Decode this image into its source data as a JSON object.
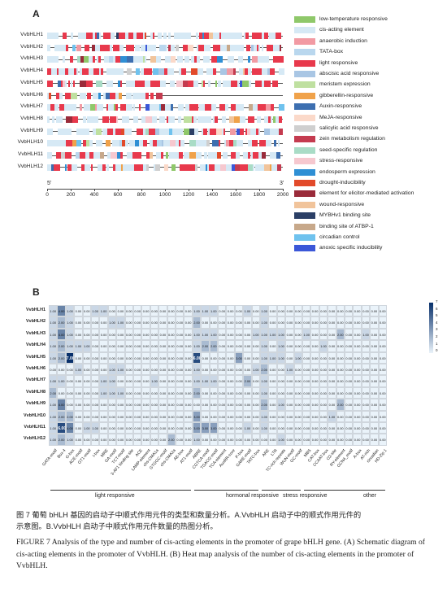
{
  "panel_a": {
    "letter": "A",
    "genes": [
      "VvbHLH1",
      "VvbHLH2",
      "VvbHLH3",
      "VvbHLH4",
      "VvbHLH5",
      "VvbHLH6",
      "VvbHLH7",
      "VvbHLH8",
      "VvbHLH9",
      "VvbHLH10",
      "VvbHLH11",
      "VvbHLH12"
    ],
    "axis": {
      "five_prime": "5'",
      "three_prime": "3'",
      "ticks": [
        "0",
        "200",
        "400",
        "600",
        "800",
        "1000",
        "1200",
        "1400",
        "1600",
        "1800",
        "2000"
      ]
    },
    "legend": [
      {
        "label": "low-temperature responsive",
        "color": "#8fc86a"
      },
      {
        "label": "cis-acting element",
        "color": "#d6e9f5"
      },
      {
        "label": "anaerobic induction",
        "color": "#f29aa3"
      },
      {
        "label": "TATA-box",
        "color": "#b9d7ee"
      },
      {
        "label": "light responsive",
        "color": "#e8394c"
      },
      {
        "label": "abscisic acid responsive",
        "color": "#a9c6e4"
      },
      {
        "label": "meristem expression",
        "color": "#bfe0a0"
      },
      {
        "label": "gibberellin-responsive",
        "color": "#f0a24a"
      },
      {
        "label": "Auxin-responsive",
        "color": "#3d6fb0"
      },
      {
        "label": "MeJA-responsive",
        "color": "#fbd9c9"
      },
      {
        "label": "salicylic acid responsive",
        "color": "#cfcfcf"
      },
      {
        "label": "zein metabolism regulation",
        "color": "#c43b4f"
      },
      {
        "label": "seed-specific regulation",
        "color": "#a9dcc6"
      },
      {
        "label": "stress-responsive",
        "color": "#f6c8cf"
      },
      {
        "label": "endosperm expression",
        "color": "#2f8fd4"
      },
      {
        "label": "drought-inducibility",
        "color": "#e24a2a"
      },
      {
        "label": "element for elicitor-mediated activation",
        "color": "#9a2b3a"
      },
      {
        "label": "wound-responsive",
        "color": "#f1c49b"
      },
      {
        "label": "MYBHv1 binding site",
        "color": "#2b3f66"
      },
      {
        "label": "binding site of ATBP-1",
        "color": "#c7a88a"
      },
      {
        "label": "circadian control",
        "color": "#6fc2ee"
      },
      {
        "label": "anoxic specific inducibility",
        "color": "#3b57d8"
      }
    ]
  },
  "panel_b": {
    "letter": "B",
    "rows": [
      "VvbHLH1",
      "VvbHLH2",
      "VvbHLH3",
      "VvbHLH4",
      "VvbHLH5",
      "VvbHLH6",
      "VvbHLH7",
      "VvbHLH8",
      "VvbHLH9",
      "VvbHLH10",
      "VvbHLH11",
      "VvbHLH12"
    ],
    "cols": [
      "GATA-motif",
      "Box 4",
      "G-box",
      "ACE-motif",
      "GT1-motif",
      "I-box",
      "MRE",
      "GA-motif",
      "TCT-motif",
      "3-AF1 binding site",
      "ACE",
      "LAMP-element",
      "chs-CMA1a",
      "GTGGC-motif",
      "chs-CMA2a",
      "AE-box",
      "AT1-motif",
      "ABRE",
      "CGTCA-motif",
      "TGACG-motif",
      "TCA-element",
      "AuxRR-core",
      "P-box",
      "GARE-motif",
      "TATC-box",
      "ARE",
      "LTR",
      "TC-rich repeats",
      "WUN-motif",
      "GC-motif",
      "MBS",
      "CAT-box",
      "CCAAT-box",
      "O2-site",
      "RY-element",
      "GCN4_motif",
      "A-box",
      "AT-rich",
      "circadian",
      "HD-Zip 1"
    ],
    "values": [
      [
        1,
        4,
        1,
        0,
        0,
        1,
        1,
        0,
        0,
        0,
        0,
        0,
        0,
        0,
        0,
        0,
        0,
        1,
        1,
        1,
        0,
        0,
        0,
        1,
        0,
        1,
        0,
        0,
        0,
        0,
        0,
        0,
        0,
        0,
        0,
        0,
        0,
        0,
        0,
        0
      ],
      [
        1,
        2,
        1,
        0,
        0,
        0,
        0,
        1,
        1,
        0,
        0,
        0,
        0,
        0,
        0,
        0,
        0,
        2,
        0,
        0,
        0,
        0,
        0,
        0,
        0,
        1,
        0,
        0,
        0,
        0,
        0,
        0,
        0,
        0,
        0,
        0,
        0,
        0,
        0,
        0
      ],
      [
        1,
        4,
        1,
        0,
        0,
        0,
        0,
        0,
        0,
        0,
        0,
        0,
        0,
        0,
        0,
        0,
        0,
        1,
        1,
        1,
        0,
        0,
        0,
        0,
        1,
        1,
        1,
        1,
        0,
        0,
        1,
        0,
        0,
        0,
        2,
        0,
        0,
        1,
        0,
        0
      ],
      [
        1,
        2,
        1,
        1,
        1,
        0,
        0,
        0,
        0,
        0,
        0,
        0,
        0,
        0,
        0,
        0,
        0,
        1,
        2,
        2,
        0,
        0,
        0,
        0,
        0,
        1,
        0,
        1,
        0,
        0,
        0,
        0,
        1,
        0,
        0,
        0,
        0,
        0,
        0,
        0
      ],
      [
        1,
        2,
        7,
        0,
        0,
        0,
        0,
        0,
        0,
        0,
        0,
        0,
        0,
        0,
        0,
        0,
        0,
        6,
        0,
        0,
        0,
        0,
        3,
        0,
        0,
        1,
        1,
        1,
        0,
        1,
        0,
        0,
        0,
        0,
        0,
        0,
        0,
        0,
        0,
        0
      ],
      [
        0,
        0,
        0,
        1,
        0,
        0,
        0,
        1,
        1,
        0,
        0,
        0,
        0,
        0,
        0,
        0,
        0,
        1,
        0,
        0,
        0,
        0,
        0,
        0,
        1,
        2,
        0,
        0,
        1,
        0,
        0,
        0,
        0,
        0,
        0,
        0,
        0,
        0,
        0,
        0
      ],
      [
        1,
        1,
        0,
        0,
        0,
        0,
        1,
        1,
        0,
        0,
        0,
        0,
        1,
        0,
        0,
        0,
        0,
        1,
        1,
        1,
        0,
        0,
        0,
        2,
        0,
        1,
        0,
        0,
        0,
        0,
        0,
        0,
        0,
        0,
        0,
        0,
        0,
        0,
        0,
        0
      ],
      [
        2,
        0,
        0,
        0,
        0,
        0,
        1,
        1,
        1,
        0,
        0,
        0,
        0,
        0,
        0,
        0,
        0,
        2,
        0,
        0,
        0,
        0,
        0,
        0,
        0,
        1,
        0,
        0,
        0,
        0,
        0,
        0,
        0,
        0,
        0,
        0,
        0,
        0,
        0,
        0
      ],
      [
        1,
        4,
        0,
        0,
        0,
        0,
        0,
        0,
        0,
        0,
        0,
        0,
        0,
        0,
        0,
        0,
        0,
        0,
        0,
        0,
        0,
        0,
        0,
        0,
        0,
        2,
        0,
        1,
        0,
        0,
        0,
        0,
        0,
        0,
        2,
        0,
        0,
        0,
        0,
        0
      ],
      [
        1,
        2,
        2,
        0,
        0,
        0,
        0,
        0,
        0,
        0,
        0,
        0,
        0,
        0,
        0,
        0,
        0,
        3,
        0,
        0,
        0,
        0,
        0,
        0,
        0,
        1,
        0,
        0,
        0,
        0,
        0,
        0,
        0,
        1,
        0,
        0,
        0,
        0,
        0,
        0
      ],
      [
        1,
        6,
        4,
        0,
        1,
        1,
        0,
        0,
        0,
        0,
        0,
        0,
        0,
        0,
        0,
        0,
        0,
        3,
        3,
        3,
        0,
        0,
        0,
        1,
        0,
        1,
        0,
        0,
        0,
        0,
        0,
        0,
        0,
        0,
        0,
        0,
        0,
        0,
        0,
        0
      ],
      [
        1,
        2,
        1,
        0,
        0,
        0,
        0,
        0,
        0,
        0,
        0,
        0,
        0,
        0,
        2,
        0,
        0,
        1,
        0,
        0,
        0,
        0,
        0,
        0,
        0,
        0,
        0,
        1,
        0,
        0,
        0,
        0,
        0,
        0,
        0,
        0,
        0,
        0,
        0,
        0
      ]
    ],
    "scale_ticks": [
      "7",
      "6",
      "5",
      "4",
      "3",
      "2",
      "1",
      "0"
    ],
    "groups": [
      "light responsive",
      "hormonal responsive",
      "stress responsive",
      "other"
    ]
  },
  "caption": {
    "zh_line1": "图 7  葡萄 bHLH 基因的启动子中顺式作用元件的类型和数量分析。A.VvbHLH 启动子中的顺式作用元件的",
    "zh_line2": "示意图。B.VvbHLH 启动子中顺式作用元件数量的热图分析。",
    "en": "FIGURE 7 Analysis of the type and number of cis-acting elements in the promoter of grape bHLH gene. (A) Schematic diagram of cis-acting elements in the promoter of VvbHLH. (B) Heat map analysis of the number of cis-acting elements in the promoter of VvbHLH."
  }
}
